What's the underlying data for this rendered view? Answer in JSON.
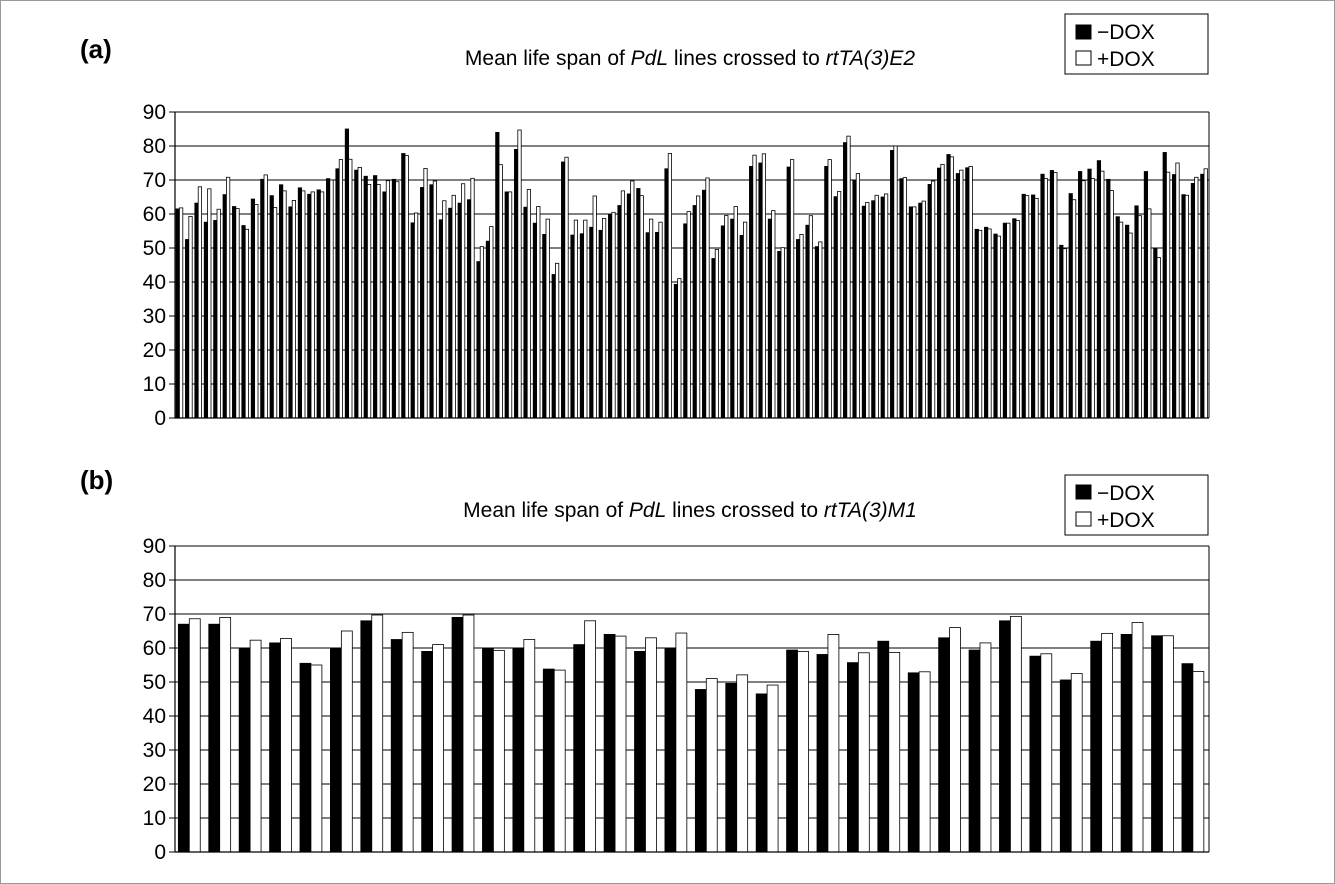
{
  "chart_data": [
    {
      "type": "bar",
      "panel_label": "(a)",
      "title_parts": [
        "Mean life span of ",
        "PdL",
        " lines crossed to ",
        "rtTA(3)E2"
      ],
      "xlabel": "",
      "ylabel": "",
      "ylim": [
        0,
        90
      ],
      "yticks": [
        "0",
        "10",
        "20",
        "30",
        "40",
        "50",
        "60",
        "70",
        "80",
        "90"
      ],
      "grid": true,
      "legend_position": "top-right",
      "series": [
        {
          "name": "−DOX",
          "color": "#000000",
          "values": [
            61.5,
            52.5,
            63.2,
            57.6,
            58.1,
            65.7,
            62.2,
            56.6,
            64.4,
            70.2,
            65.4,
            68.6,
            62.1,
            67.7,
            65.8,
            67.1,
            70.4,
            73.3,
            85,
            72.9,
            71.1,
            71.3,
            66.5,
            70.2,
            77.8,
            57.4,
            67.8,
            68.6,
            58.3,
            61.7,
            63.2,
            64.2,
            46,
            52,
            84,
            66.5,
            79,
            62,
            57.3,
            54,
            42.2,
            75.3,
            53.8,
            54.2,
            56.1,
            55.2,
            59.9,
            62.5,
            65.9,
            67.5,
            54.5,
            54.6,
            73.3,
            39.3,
            57.1,
            62.5,
            67,
            46.9,
            56.5,
            58.5,
            53.7,
            74,
            75,
            58.5,
            49,
            73.8,
            52.5,
            56.7,
            50.4,
            74,
            65.1,
            81,
            70,
            62.3,
            63.9,
            65,
            78.7,
            70.4,
            62.1,
            63.2,
            68.7,
            73.5,
            77.5,
            71.9,
            73.6,
            55.5,
            56.1,
            54.1,
            57.3,
            58.6,
            65.8,
            65.6,
            71.7,
            72.8,
            50.8,
            66,
            72.5,
            73.2,
            75.7,
            70.2,
            59.2,
            56.7,
            62.4,
            72.5,
            49.9,
            78.1,
            71.6,
            65.7,
            69,
            71.7
          ]
        },
        {
          "name": "+DOX",
          "color": "#ffffff",
          "values": [
            61.8,
            59.3,
            68,
            67.4,
            61.4,
            70.8,
            61.6,
            55.5,
            62.8,
            71.5,
            61.9,
            66.8,
            64,
            66.8,
            66.5,
            66.5,
            70,
            76,
            76.1,
            73.7,
            68.7,
            68.7,
            69.8,
            69.5,
            77.2,
            60.3,
            73.4,
            69.7,
            63.9,
            65.5,
            68.9,
            70.5,
            50.4,
            56.3,
            74.5,
            66.5,
            84.7,
            67.2,
            62.2,
            58.5,
            45.5,
            76.7,
            58.2,
            58.2,
            65.3,
            58.7,
            60.5,
            66.8,
            69.7,
            65.4,
            58.5,
            57.6,
            77.8,
            41,
            60.7,
            65.3,
            70.6,
            49.6,
            59.6,
            62.2,
            57.6,
            77.3,
            77.7,
            61,
            50.1,
            76,
            54,
            59.5,
            51.8,
            76,
            66.6,
            82.9,
            71.9,
            63.4,
            65.5,
            65.9,
            80,
            70.7,
            62.1,
            63.8,
            69.7,
            74.6,
            76.8,
            72.9,
            74,
            55.2,
            55.6,
            53.5,
            57.3,
            58.1,
            65.4,
            64.6,
            70.4,
            72.2,
            49.8,
            64.2,
            69.8,
            70.4,
            72.6,
            66.9,
            57.6,
            54.4,
            59.5,
            61.5,
            47.2,
            72.3,
            75,
            65.5,
            70.8,
            73.3
          ]
        }
      ]
    },
    {
      "type": "bar",
      "panel_label": "(b)",
      "title_parts": [
        "Mean life span of ",
        "PdL",
        " lines crossed to ",
        "rtTA(3)M1"
      ],
      "xlabel": "",
      "ylabel": "",
      "ylim": [
        0,
        90
      ],
      "yticks": [
        "0",
        "10",
        "20",
        "30",
        "40",
        "50",
        "60",
        "70",
        "80",
        "90"
      ],
      "grid": true,
      "legend_position": "top-right",
      "series": [
        {
          "name": "−DOX",
          "color": "#000000",
          "values": [
            67,
            67,
            60,
            61.5,
            55.5,
            60,
            68,
            62.5,
            59,
            69,
            60,
            60,
            53.8,
            61,
            64,
            59,
            59.8,
            47.8,
            49.6,
            46.5,
            59.4,
            58.1,
            55.7,
            62,
            52.7,
            63,
            59.4,
            68,
            57.6,
            50.6,
            62,
            64,
            63.6,
            55.4
          ]
        },
        {
          "name": "+DOX",
          "color": "#ffffff",
          "values": [
            68.6,
            69,
            62.3,
            62.8,
            55,
            65,
            69.7,
            64.6,
            61,
            69.7,
            59.3,
            62.5,
            53.5,
            68,
            63.5,
            63,
            64.4,
            51,
            52.1,
            49.1,
            59,
            64,
            58.6,
            58.7,
            53,
            66,
            61.5,
            69.3,
            58.3,
            52.5,
            64.3,
            67.5,
            63.6,
            53.1
          ]
        }
      ]
    }
  ]
}
